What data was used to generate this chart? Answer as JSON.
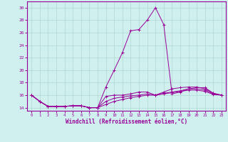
{
  "xlabel": "Windchill (Refroidissement éolien,°C)",
  "background_color": "#cff0ee",
  "grid_color": "#b0d8d0",
  "line_color": "#990099",
  "xlim": [
    -0.5,
    23.5
  ],
  "ylim": [
    13.5,
    31.0
  ],
  "yticks": [
    14,
    16,
    18,
    20,
    22,
    24,
    26,
    28,
    30
  ],
  "xticks": [
    0,
    1,
    2,
    3,
    4,
    5,
    6,
    7,
    8,
    9,
    10,
    11,
    12,
    13,
    14,
    15,
    16,
    17,
    18,
    19,
    20,
    21,
    22,
    23
  ],
  "series": [
    [
      16.0,
      15.0,
      14.2,
      14.2,
      14.2,
      14.3,
      14.3,
      14.0,
      14.0,
      17.3,
      20.0,
      22.8,
      26.3,
      26.5,
      28.0,
      30.0,
      27.3,
      16.2,
      16.5,
      17.0,
      17.2,
      17.2,
      16.3,
      16.0
    ],
    [
      16.0,
      15.0,
      14.2,
      14.2,
      14.2,
      14.3,
      14.3,
      14.0,
      14.0,
      15.8,
      16.0,
      16.0,
      16.2,
      16.5,
      16.5,
      16.0,
      16.5,
      17.0,
      17.2,
      17.3,
      17.3,
      17.0,
      16.3,
      16.0
    ],
    [
      16.0,
      15.0,
      14.2,
      14.2,
      14.2,
      14.3,
      14.3,
      14.0,
      14.0,
      15.0,
      15.5,
      15.7,
      15.9,
      16.0,
      16.2,
      16.0,
      16.3,
      16.5,
      16.7,
      17.0,
      17.0,
      16.8,
      16.2,
      16.0
    ],
    [
      16.0,
      15.0,
      14.2,
      14.2,
      14.2,
      14.3,
      14.3,
      14.0,
      14.0,
      14.5,
      15.0,
      15.3,
      15.6,
      15.8,
      16.0,
      16.0,
      16.2,
      16.4,
      16.6,
      16.8,
      16.8,
      16.6,
      16.1,
      16.0
    ]
  ]
}
